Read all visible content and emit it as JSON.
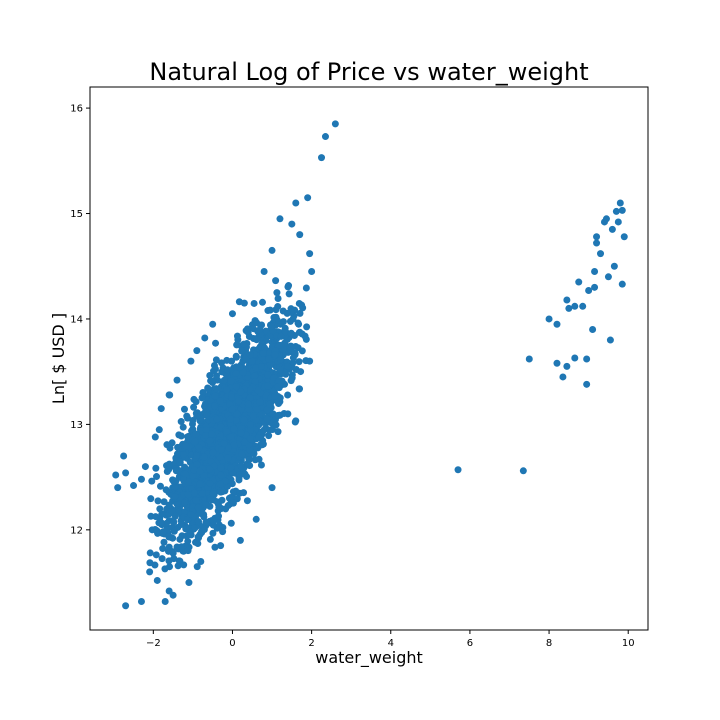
{
  "chart_data": {
    "type": "scatter",
    "title": "Natural Log of Price vs water_weight",
    "xlabel": "water_weight",
    "ylabel": "Ln[ $ USD ]",
    "xlim": [
      -3.6,
      10.5
    ],
    "ylim": [
      11.05,
      16.2
    ],
    "xticks": [
      -2,
      0,
      2,
      4,
      6,
      8,
      10
    ],
    "xtick_labels": [
      "−2",
      "0",
      "2",
      "4",
      "6",
      "8",
      "10"
    ],
    "yticks": [
      12,
      13,
      14,
      15,
      16
    ],
    "ytick_labels": [
      "12",
      "13",
      "14",
      "15",
      "16"
    ],
    "grid": false,
    "legend": "none",
    "marker_color": "#1f77b4",
    "cluster": {
      "description_visible": false,
      "center_x": -0.1,
      "center_y": 12.95,
      "spread_x": 0.75,
      "spread_y": 0.48,
      "correlation": 0.78,
      "count": 2600
    },
    "points": [
      {
        "x": -2.7,
        "y": 11.28
      },
      {
        "x": -2.3,
        "y": 11.32
      },
      {
        "x": -1.9,
        "y": 11.52
      },
      {
        "x": -1.7,
        "y": 11.32
      },
      {
        "x": -1.5,
        "y": 11.38
      },
      {
        "x": -1.6,
        "y": 11.42
      },
      {
        "x": -2.95,
        "y": 12.52
      },
      {
        "x": -2.9,
        "y": 12.4
      },
      {
        "x": -2.7,
        "y": 12.54
      },
      {
        "x": -2.75,
        "y": 12.7
      },
      {
        "x": -2.5,
        "y": 12.42
      },
      {
        "x": -2.3,
        "y": 12.48
      },
      {
        "x": -2.2,
        "y": 12.6
      },
      {
        "x": -1.95,
        "y": 12.88
      },
      {
        "x": -1.85,
        "y": 12.95
      },
      {
        "x": -1.8,
        "y": 13.15
      },
      {
        "x": -1.6,
        "y": 13.28
      },
      {
        "x": -1.4,
        "y": 13.42
      },
      {
        "x": -1.05,
        "y": 13.6
      },
      {
        "x": -0.9,
        "y": 13.7
      },
      {
        "x": -0.7,
        "y": 13.82
      },
      {
        "x": -0.5,
        "y": 13.95
      },
      {
        "x": 0.0,
        "y": 14.05
      },
      {
        "x": 0.3,
        "y": 14.15
      },
      {
        "x": 0.8,
        "y": 14.45
      },
      {
        "x": 1.0,
        "y": 14.65
      },
      {
        "x": 1.2,
        "y": 14.95
      },
      {
        "x": 1.5,
        "y": 14.9
      },
      {
        "x": 1.6,
        "y": 15.1
      },
      {
        "x": 1.9,
        "y": 15.15
      },
      {
        "x": 1.7,
        "y": 14.8
      },
      {
        "x": 1.95,
        "y": 14.62
      },
      {
        "x": 2.0,
        "y": 14.45
      },
      {
        "x": 1.95,
        "y": 13.6
      },
      {
        "x": 1.4,
        "y": 13.55
      },
      {
        "x": 1.4,
        "y": 13.1
      },
      {
        "x": 1.0,
        "y": 12.4
      },
      {
        "x": 0.6,
        "y": 12.1
      },
      {
        "x": 0.2,
        "y": 11.9
      },
      {
        "x": -0.3,
        "y": 11.85
      },
      {
        "x": -0.8,
        "y": 11.7
      },
      {
        "x": -1.1,
        "y": 11.5
      },
      {
        "x": 2.25,
        "y": 15.53
      },
      {
        "x": 2.35,
        "y": 15.73
      },
      {
        "x": 2.6,
        "y": 15.85
      },
      {
        "x": 5.7,
        "y": 12.57
      },
      {
        "x": 7.35,
        "y": 12.56
      },
      {
        "x": 7.5,
        "y": 13.62
      },
      {
        "x": 8.0,
        "y": 14.0
      },
      {
        "x": 8.2,
        "y": 13.95
      },
      {
        "x": 8.2,
        "y": 13.58
      },
      {
        "x": 8.35,
        "y": 13.45
      },
      {
        "x": 8.45,
        "y": 13.55
      },
      {
        "x": 8.45,
        "y": 14.18
      },
      {
        "x": 8.5,
        "y": 14.1
      },
      {
        "x": 8.65,
        "y": 14.12
      },
      {
        "x": 8.65,
        "y": 13.63
      },
      {
        "x": 8.75,
        "y": 14.35
      },
      {
        "x": 8.85,
        "y": 14.12
      },
      {
        "x": 8.95,
        "y": 13.62
      },
      {
        "x": 8.95,
        "y": 13.38
      },
      {
        "x": 9.0,
        "y": 14.27
      },
      {
        "x": 9.1,
        "y": 13.9
      },
      {
        "x": 9.15,
        "y": 14.3
      },
      {
        "x": 9.15,
        "y": 14.45
      },
      {
        "x": 9.2,
        "y": 14.72
      },
      {
        "x": 9.2,
        "y": 14.78
      },
      {
        "x": 9.3,
        "y": 14.62
      },
      {
        "x": 9.4,
        "y": 14.92
      },
      {
        "x": 9.45,
        "y": 14.95
      },
      {
        "x": 9.5,
        "y": 14.4
      },
      {
        "x": 9.55,
        "y": 13.8
      },
      {
        "x": 9.6,
        "y": 14.85
      },
      {
        "x": 9.65,
        "y": 14.5
      },
      {
        "x": 9.7,
        "y": 15.02
      },
      {
        "x": 9.75,
        "y": 14.92
      },
      {
        "x": 9.8,
        "y": 15.1
      },
      {
        "x": 9.85,
        "y": 15.03
      },
      {
        "x": 9.85,
        "y": 14.33
      },
      {
        "x": 9.9,
        "y": 14.78
      }
    ]
  }
}
